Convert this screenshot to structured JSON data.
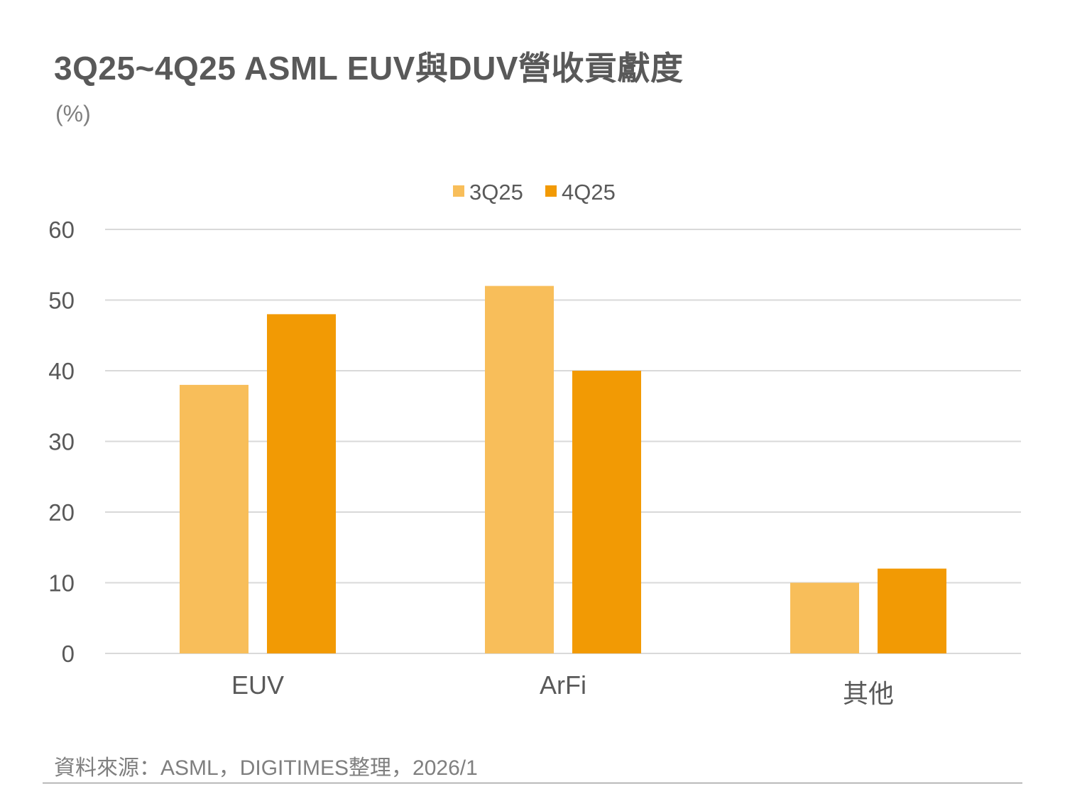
{
  "title": "3Q25~4Q25 ASML EUV與DUV營收貢獻度",
  "unit": "(%)",
  "source": "資料來源：ASML，DIGITIMES整理，2026/1",
  "colors": {
    "series_3q25": "#f8be5a",
    "series_4q25": "#f29a04",
    "grid": "#d9d9d9",
    "axis_text": "#595959"
  },
  "chart_data": {
    "type": "bar",
    "title": "3Q25~4Q25 ASML EUV與DUV營收貢獻度",
    "ylabel": "(%)",
    "xlabel": "",
    "categories": [
      "EUV",
      "ArFi",
      "其他"
    ],
    "series": [
      {
        "name": "3Q25",
        "values": [
          38,
          52,
          10
        ]
      },
      {
        "name": "4Q25",
        "values": [
          48,
          40,
          12
        ]
      }
    ],
    "ylim": [
      0,
      60
    ],
    "yticks": [
      0,
      10,
      20,
      30,
      40,
      50,
      60
    ],
    "grid": true,
    "legend": "top-center"
  }
}
